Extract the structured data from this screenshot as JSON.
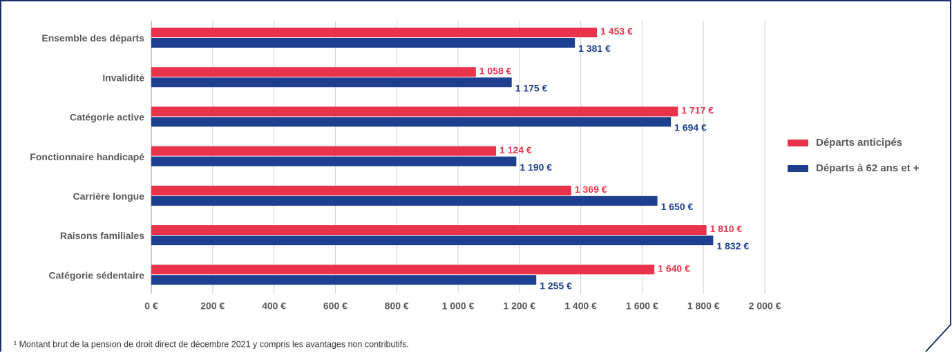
{
  "chart_data": {
    "type": "bar",
    "orientation": "horizontal",
    "categories": [
      "Ensemble des départs",
      "Invalidité",
      "Catégorie active",
      "Fonctionnaire handicapé",
      "Carrière longue",
      "Raisons familiales",
      "Catégorie sédentaire"
    ],
    "series": [
      {
        "name": "Départs anticipés",
        "color": "#e8334a",
        "values": [
          1453,
          1058,
          1717,
          1124,
          1369,
          1810,
          1640
        ],
        "value_labels": [
          "1 453 €",
          "1 058 €",
          "1 717 €",
          "1 124 €",
          "1 369 €",
          "1 810 €",
          "1 640 €"
        ]
      },
      {
        "name": "Départs à 62 ans et +",
        "color": "#1d3f8f",
        "values": [
          1381,
          1175,
          1694,
          1190,
          1650,
          1832,
          1255
        ],
        "value_labels": [
          "1 381 €",
          "1 175 €",
          "1 694 €",
          "1 190 €",
          "1 650 €",
          "1 832 €",
          "1 255 €"
        ]
      }
    ],
    "xlim": [
      0,
      2000
    ],
    "xticks": [
      {
        "value": 0,
        "label": "0 €"
      },
      {
        "value": 200,
        "label": "200 €"
      },
      {
        "value": 400,
        "label": "400 €"
      },
      {
        "value": 600,
        "label": "600 €"
      },
      {
        "value": 800,
        "label": "800 €"
      },
      {
        "value": 1000,
        "label": "1 000 €"
      },
      {
        "value": 1200,
        "label": "1 200 €"
      },
      {
        "value": 1400,
        "label": "1 400 €"
      },
      {
        "value": 1600,
        "label": "1 600 €"
      },
      {
        "value": 1800,
        "label": "1 800 €"
      },
      {
        "value": 2000,
        "label": "2 000 €"
      }
    ],
    "grid": true,
    "legend": "right",
    "footnote": "¹ Montant brut de la pension de droit direct de décembre 2021 y compris les avantages non contributifs."
  }
}
